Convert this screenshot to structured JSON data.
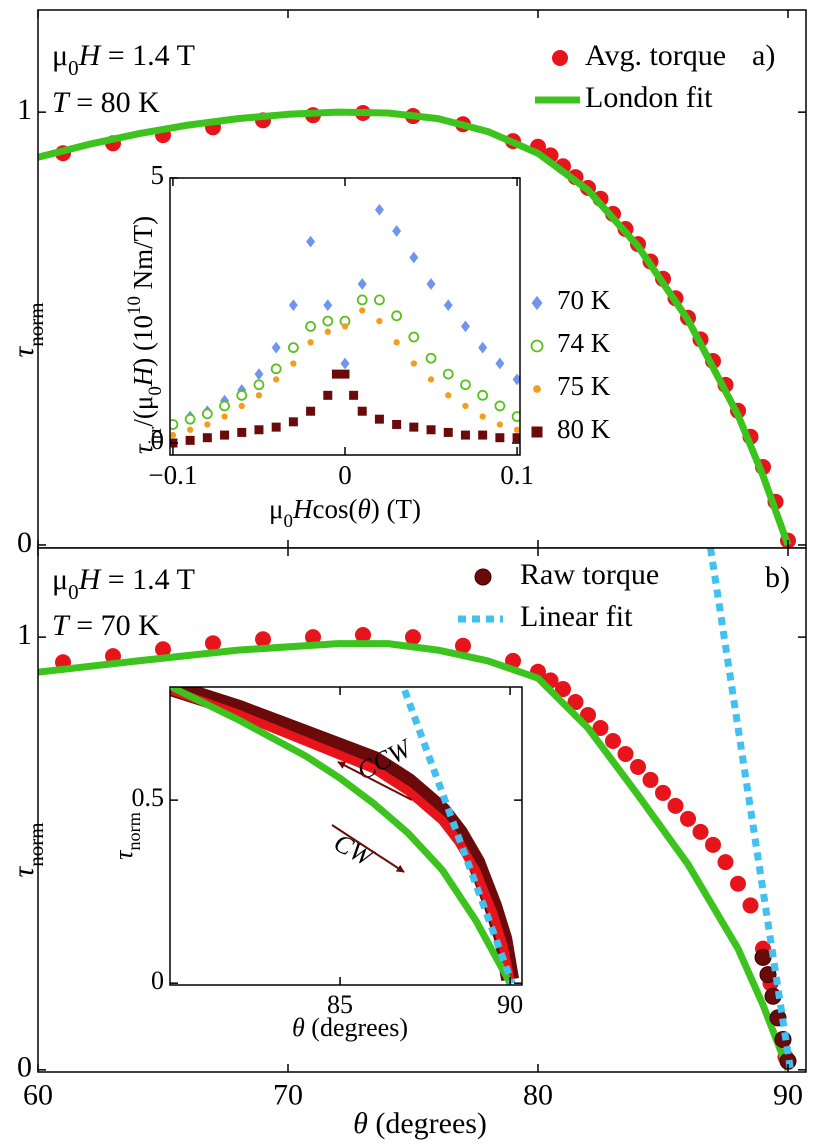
{
  "chart_data": [
    {
      "type": "line",
      "xlim": [
        60,
        90.72
      ],
      "ylim": [
        -0.007,
        1.236
      ],
      "xticks": [
        60,
        70,
        80,
        90
      ],
      "xtick_labels": false,
      "yticks": [
        0,
        1
      ],
      "y_label": [
        {
          "t": "τ",
          "s": "i"
        },
        {
          "t": "norm",
          "s": "sub"
        }
      ],
      "annotations": [
        [
          {
            "t": "μ"
          },
          {
            "t": "0",
            "s": "sub"
          },
          {
            "t": "H",
            "s": "i"
          },
          {
            "t": " = 1.4 T"
          }
        ],
        [
          {
            "t": "T",
            "s": "i"
          },
          {
            "t": " = 80 K"
          }
        ]
      ],
      "panel_label": "a)",
      "legend": "upper right",
      "series": [
        {
          "name": "Avg. torque",
          "color": "#e8141b",
          "mode": "markers",
          "marker": "circle",
          "x": [
            61,
            63,
            65,
            67,
            69,
            71,
            73,
            75,
            77,
            79,
            80,
            80.5,
            81,
            81.5,
            82,
            82.5,
            83,
            83.5,
            84,
            84.5,
            85,
            85.5,
            86,
            86.5,
            87,
            87.5,
            88,
            88.5,
            89,
            89.5,
            90
          ],
          "values": [
            0.905,
            0.928,
            0.947,
            0.965,
            0.981,
            0.993,
            0.998,
            0.991,
            0.972,
            0.933,
            0.92,
            0.9,
            0.875,
            0.85,
            0.825,
            0.8,
            0.765,
            0.73,
            0.695,
            0.655,
            0.615,
            0.57,
            0.525,
            0.475,
            0.425,
            0.37,
            0.31,
            0.25,
            0.18,
            0.1,
            0.01
          ]
        },
        {
          "name": "London fit",
          "color": "#3cc31e",
          "mode": "lines",
          "x": [
            60,
            62,
            64,
            66,
            68,
            70,
            72,
            74,
            76,
            78,
            80,
            82,
            84,
            86,
            88,
            89,
            90
          ],
          "values": [
            0.896,
            0.925,
            0.95,
            0.97,
            0.985,
            0.995,
            1.0,
            0.998,
            0.985,
            0.955,
            0.905,
            0.82,
            0.69,
            0.52,
            0.3,
            0.16,
            0
          ]
        }
      ]
    },
    {
      "type": "scatter",
      "xlim": [
        -0.1017,
        0.1017
      ],
      "ylim": [
        -0.226,
        5
      ],
      "xticks": [
        {
          "value": -0.1,
          "label": "−0.1"
        },
        0,
        0.1
      ],
      "yticks": [
        0,
        5
      ],
      "x_label": [
        {
          "t": "μ"
        },
        {
          "t": "0",
          "s": "sub"
        },
        {
          "t": "H",
          "s": "i"
        },
        {
          "t": "cos("
        },
        {
          "t": "θ",
          "s": "i"
        },
        {
          "t": ") (T)"
        }
      ],
      "y_label": [
        {
          "t": "τ",
          "s": "i"
        },
        {
          "t": "irr",
          "s": "sub"
        },
        {
          "t": "/(μ"
        },
        {
          "t": "0",
          "s": "sub"
        },
        {
          "t": "H",
          "s": "i"
        },
        {
          "t": ") (10"
        },
        {
          "t": "10",
          "s": "sup"
        },
        {
          "t": " Nm/T)"
        }
      ],
      "legend": "right",
      "series": [
        {
          "name": "70 K",
          "color": "#6f95ec",
          "mode": "markers",
          "marker": "diamond",
          "x": [
            -0.1,
            -0.09,
            -0.08,
            -0.07,
            -0.06,
            -0.05,
            -0.04,
            -0.03,
            -0.02,
            -0.01,
            0,
            0.01,
            0.02,
            0.03,
            0.04,
            0.05,
            0.06,
            0.07,
            0.08,
            0.09,
            0.1
          ],
          "values": [
            0.35,
            0.5,
            0.6,
            0.8,
            1.0,
            1.3,
            1.8,
            2.6,
            3.8,
            2.6,
            1.5,
            3.0,
            4.4,
            4.0,
            3.5,
            3.0,
            2.6,
            2.2,
            1.8,
            1.5,
            1.2
          ]
        },
        {
          "name": "74 K",
          "color": "#5bbf1a",
          "mode": "markers",
          "marker": "open-circle",
          "x": [
            -0.1,
            -0.09,
            -0.08,
            -0.07,
            -0.06,
            -0.05,
            -0.04,
            -0.03,
            -0.02,
            -0.01,
            0,
            0.01,
            0.02,
            0.03,
            0.04,
            0.05,
            0.06,
            0.07,
            0.08,
            0.09,
            0.1
          ],
          "values": [
            0.35,
            0.45,
            0.55,
            0.7,
            0.9,
            1.1,
            1.4,
            1.8,
            2.2,
            2.3,
            2.3,
            2.7,
            2.7,
            2.4,
            2.0,
            1.6,
            1.3,
            1.1,
            0.9,
            0.7,
            0.5
          ]
        },
        {
          "name": "75 K",
          "color": "#f39c1f",
          "mode": "markers",
          "marker": "dot",
          "x": [
            -0.1,
            -0.09,
            -0.08,
            -0.07,
            -0.06,
            -0.05,
            -0.04,
            -0.03,
            -0.02,
            -0.01,
            0,
            0.01,
            0.02,
            0.03,
            0.04,
            0.05,
            0.06,
            0.07,
            0.08,
            0.09,
            0.1
          ],
          "values": [
            0.15,
            0.25,
            0.35,
            0.5,
            0.7,
            0.9,
            1.2,
            1.5,
            1.9,
            2.1,
            2.2,
            2.5,
            2.3,
            1.9,
            1.5,
            1.2,
            0.9,
            0.7,
            0.5,
            0.35,
            0.25
          ]
        },
        {
          "name": "80 K",
          "color": "#6b0a0a",
          "mode": "markers",
          "marker": "square",
          "x": [
            -0.1,
            -0.09,
            -0.08,
            -0.07,
            -0.06,
            -0.05,
            -0.04,
            -0.03,
            -0.02,
            -0.01,
            -0.005,
            0,
            0.005,
            0.01,
            0.02,
            0.03,
            0.04,
            0.05,
            0.06,
            0.07,
            0.08,
            0.09,
            0.1
          ],
          "values": [
            0.0,
            0.05,
            0.1,
            0.15,
            0.2,
            0.25,
            0.3,
            0.4,
            0.6,
            0.9,
            1.3,
            1.3,
            0.9,
            0.6,
            0.45,
            0.35,
            0.3,
            0.25,
            0.2,
            0.15,
            0.15,
            0.1,
            0.1
          ]
        }
      ]
    },
    {
      "type": "line",
      "xlim": [
        60,
        90.72
      ],
      "ylim": [
        -0.005,
        1.206
      ],
      "xticks": [
        60,
        70,
        80,
        90
      ],
      "xtick_labels": true,
      "yticks": [
        0,
        1
      ],
      "x_label": [
        {
          "t": "θ",
          "s": "i"
        },
        {
          "t": " (degrees)"
        }
      ],
      "y_label": [
        {
          "t": "τ",
          "s": "i"
        },
        {
          "t": "norm",
          "s": "sub"
        }
      ],
      "annotations": [
        [
          {
            "t": "μ"
          },
          {
            "t": "0",
            "s": "sub"
          },
          {
            "t": "H",
            "s": "i"
          },
          {
            "t": " = 1.4 T"
          }
        ],
        [
          {
            "t": "T",
            "s": "i"
          },
          {
            "t": " = 70 K"
          }
        ]
      ],
      "panel_label": "b)",
      "legend": "upper right",
      "series": [
        {
          "color": "#e8141b",
          "mode": "markers",
          "marker": "circle",
          "x": [
            61,
            63,
            65,
            67,
            69,
            71,
            73,
            75,
            77,
            79,
            80,
            80.5,
            81,
            81.5,
            82,
            82.5,
            83,
            83.5,
            84,
            84.5,
            85,
            85.5,
            86,
            86.5,
            87,
            87.5,
            88,
            88.5,
            89,
            89.3,
            89.6,
            89.9
          ],
          "values": [
            0.942,
            0.956,
            0.972,
            0.986,
            0.995,
            1.0,
            1.005,
            1.0,
            0.98,
            0.945,
            0.92,
            0.9,
            0.88,
            0.85,
            0.82,
            0.79,
            0.76,
            0.73,
            0.7,
            0.67,
            0.64,
            0.61,
            0.58,
            0.55,
            0.52,
            0.48,
            0.43,
            0.38,
            0.28,
            0.2,
            0.12,
            0.03
          ]
        },
        {
          "color": "#3cc31e",
          "mode": "lines",
          "x": [
            60,
            64,
            68,
            72,
            74,
            76,
            78,
            80,
            82,
            84,
            86,
            88,
            89,
            90
          ],
          "values": [
            0.919,
            0.945,
            0.97,
            0.985,
            0.985,
            0.97,
            0.945,
            0.905,
            0.79,
            0.635,
            0.475,
            0.28,
            0.15,
            0
          ]
        },
        {
          "name": "Raw torque",
          "color": "#6b0a0a",
          "mode": "markers",
          "marker": "circle",
          "x": [
            89,
            89.2,
            89.4,
            89.6,
            89.8,
            90
          ],
          "values": [
            0.26,
            0.22,
            0.17,
            0.12,
            0.07,
            0.02
          ]
        },
        {
          "name": "Linear fit",
          "color": "#42c0f0",
          "mode": "dashed",
          "x": [
            86.9,
            90.1
          ],
          "values": [
            1.206,
            0
          ]
        }
      ]
    },
    {
      "type": "line",
      "xlim": [
        80,
        90.35
      ],
      "ylim": [
        -0.005,
        0.809
      ],
      "xticks": [
        85,
        90
      ],
      "yticks": [
        0,
        0.5
      ],
      "x_label": [
        {
          "t": "θ",
          "s": "i"
        },
        {
          "t": " (degrees)"
        }
      ],
      "y_label": [
        {
          "t": "τ",
          "s": "i"
        },
        {
          "t": "norm",
          "s": "sub"
        }
      ],
      "annotations": [
        [
          {
            "t": "CCW",
            "s": "i"
          }
        ],
        [
          {
            "t": "CW",
            "s": "i"
          }
        ]
      ],
      "series": [
        {
          "color": "#6b0a0a",
          "mode": "lines",
          "width": 18,
          "x": [
            80.06,
            82,
            84,
            86,
            87,
            88,
            88.5,
            89,
            89.5,
            89.8,
            90
          ],
          "values": [
            0.808,
            0.75,
            0.68,
            0.61,
            0.55,
            0.47,
            0.41,
            0.33,
            0.21,
            0.12,
            0.01
          ]
        },
        {
          "color": "#e8141b",
          "mode": "lines",
          "width": 9,
          "x": [
            80.06,
            82,
            84,
            86,
            87,
            88,
            88.5,
            89,
            89.5,
            89.8,
            90
          ],
          "values": [
            0.8,
            0.735,
            0.66,
            0.585,
            0.525,
            0.445,
            0.385,
            0.305,
            0.19,
            0.1,
            0.01
          ]
        },
        {
          "color": "#3cc31e",
          "mode": "lines",
          "width": 7,
          "x": [
            80.06,
            82,
            84,
            85,
            86,
            87,
            88,
            89,
            90
          ],
          "values": [
            0.808,
            0.72,
            0.62,
            0.56,
            0.49,
            0.41,
            0.31,
            0.17,
            0
          ]
        },
        {
          "color": "#42c0f0",
          "mode": "dashed",
          "width": 7,
          "x": [
            86.9,
            90.06
          ],
          "values": [
            0.8,
            0
          ]
        }
      ]
    }
  ]
}
